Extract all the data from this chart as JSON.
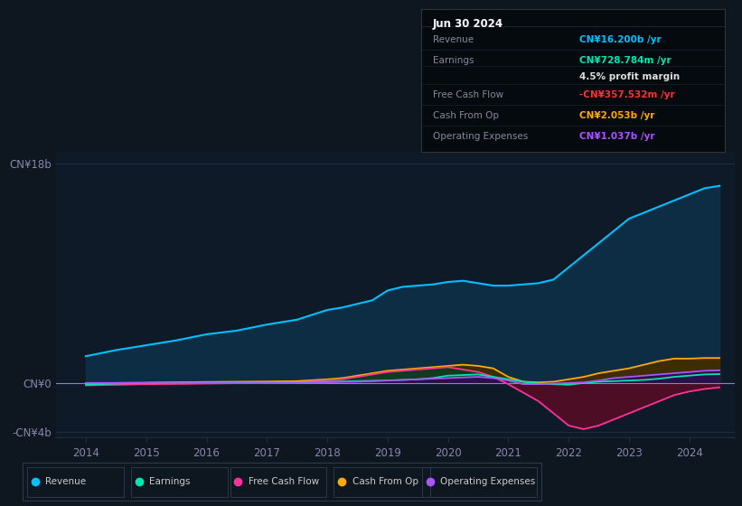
{
  "background_color": "#0e1620",
  "plot_bg_color": "#0e1a28",
  "ylim": [
    -4500000000.0,
    19000000000.0
  ],
  "xlim": [
    2013.5,
    2024.75
  ],
  "ytick_vals": [
    -4000000000.0,
    0,
    18000000000.0
  ],
  "ytick_labels": [
    "-CN¥4b",
    "CN¥0",
    "CN¥18b"
  ],
  "xtick_vals": [
    2014,
    2015,
    2016,
    2017,
    2018,
    2019,
    2020,
    2021,
    2022,
    2023,
    2024
  ],
  "years": [
    2014.0,
    2014.5,
    2015.0,
    2015.5,
    2016.0,
    2016.5,
    2017.0,
    2017.5,
    2018.0,
    2018.25,
    2018.5,
    2018.75,
    2019.0,
    2019.25,
    2019.5,
    2019.75,
    2020.0,
    2020.25,
    2020.5,
    2020.75,
    2021.0,
    2021.25,
    2021.5,
    2021.75,
    2022.0,
    2022.25,
    2022.5,
    2022.75,
    2023.0,
    2023.25,
    2023.5,
    2023.75,
    2024.0,
    2024.25,
    2024.5
  ],
  "revenue": [
    2.2,
    2.7,
    3.1,
    3.5,
    4.0,
    4.3,
    4.8,
    5.2,
    6.0,
    6.2,
    6.5,
    6.8,
    7.6,
    7.9,
    8.0,
    8.1,
    8.3,
    8.4,
    8.2,
    8.0,
    8.0,
    8.1,
    8.2,
    8.5,
    9.5,
    10.5,
    11.5,
    12.5,
    13.5,
    14.0,
    14.5,
    15.0,
    15.5,
    16.0,
    16.2
  ],
  "earnings": [
    -0.15,
    -0.05,
    0.0,
    0.03,
    0.05,
    0.05,
    0.05,
    0.07,
    0.1,
    0.12,
    0.15,
    0.18,
    0.2,
    0.25,
    0.3,
    0.4,
    0.6,
    0.65,
    0.7,
    0.5,
    0.3,
    0.1,
    -0.05,
    -0.1,
    -0.15,
    0.0,
    0.1,
    0.15,
    0.2,
    0.25,
    0.35,
    0.5,
    0.6,
    0.7,
    0.73
  ],
  "free_cash_flow": [
    -0.2,
    -0.15,
    -0.1,
    -0.08,
    -0.05,
    -0.02,
    0.0,
    0.05,
    0.2,
    0.3,
    0.5,
    0.7,
    0.9,
    1.0,
    1.1,
    1.2,
    1.3,
    1.1,
    0.9,
    0.5,
    -0.1,
    -0.8,
    -1.5,
    -2.5,
    -3.5,
    -3.8,
    -3.5,
    -3.0,
    -2.5,
    -2.0,
    -1.5,
    -1.0,
    -0.7,
    -0.5,
    -0.36
  ],
  "cash_from_op": [
    -0.05,
    0.0,
    0.02,
    0.05,
    0.08,
    0.1,
    0.12,
    0.15,
    0.3,
    0.4,
    0.6,
    0.8,
    1.0,
    1.1,
    1.2,
    1.3,
    1.4,
    1.5,
    1.4,
    1.2,
    0.5,
    0.1,
    0.05,
    0.1,
    0.3,
    0.5,
    0.8,
    1.0,
    1.2,
    1.5,
    1.8,
    2.0,
    2.0,
    2.05,
    2.05
  ],
  "operating_expenses": [
    0.0,
    0.0,
    0.0,
    0.0,
    0.0,
    0.0,
    0.0,
    0.0,
    0.05,
    0.08,
    0.1,
    0.15,
    0.2,
    0.25,
    0.3,
    0.35,
    0.4,
    0.45,
    0.5,
    0.4,
    0.2,
    -0.1,
    -0.1,
    -0.05,
    0.0,
    0.05,
    0.2,
    0.4,
    0.5,
    0.6,
    0.7,
    0.8,
    0.9,
    1.0,
    1.04
  ],
  "revenue_line_color": "#00bfff",
  "revenue_fill_color": "#0d2d45",
  "earnings_line_color": "#00e5b0",
  "earnings_fill_pos_color": "#0d3d30",
  "earnings_fill_neg_color": "#2d0d0d",
  "fcf_line_color": "#ff3399",
  "fcf_fill_pos_color": "#0d3d20",
  "fcf_fill_neg_color": "#4d0d25",
  "cashop_line_color": "#ffaa00",
  "cashop_fill_pos_color": "#3d2d00",
  "opex_line_color": "#aa55ff",
  "opex_fill_pos_color": "#2d0d4d",
  "opex_fill_neg_color": "#1d0d2d",
  "grid_color": "#1e2e3e",
  "zero_line_color": "#8888aa",
  "tick_label_color": "#8888aa",
  "legend_border_color": "#2a3a4a",
  "info_bg_color": "#050a0f",
  "info_border_color": "#333333",
  "info_title_color": "#ffffff",
  "info_label_color": "#888899",
  "info_divider_color": "#1a2233",
  "legend": [
    {
      "label": "Revenue",
      "color": "#00bfff"
    },
    {
      "label": "Earnings",
      "color": "#00e5b0"
    },
    {
      "label": "Free Cash Flow",
      "color": "#ff3399"
    },
    {
      "label": "Cash From Op",
      "color": "#ffaa00"
    },
    {
      "label": "Operating Expenses",
      "color": "#aa55ff"
    }
  ]
}
